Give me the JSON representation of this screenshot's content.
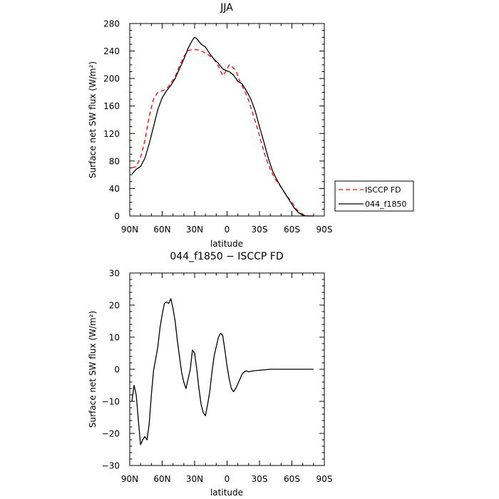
{
  "chart_data": [
    {
      "type": "line",
      "title": "JJA",
      "xlabel": "latitude",
      "ylabel": "Surface net SW flux (W/m²)",
      "xlim": [
        90,
        -90
      ],
      "ylim": [
        0,
        280
      ],
      "xticks": [
        90,
        60,
        30,
        0,
        -30,
        -60,
        -90
      ],
      "xtick_labels": [
        "90N",
        "60N",
        "30N",
        "0",
        "30S",
        "60S",
        "90S"
      ],
      "yticks": [
        0,
        40,
        80,
        120,
        160,
        200,
        240,
        280
      ],
      "ytick_labels": [
        "0",
        "40",
        "80",
        "120",
        "160",
        "200",
        "240",
        "280"
      ],
      "legend_position": "right",
      "series": [
        {
          "name": "ISCCP FD",
          "color": "#ff0000",
          "dash": "dashed",
          "points": [
            [
              88,
              70
            ],
            [
              84,
              72
            ],
            [
              80,
              85
            ],
            [
              76,
              110
            ],
            [
              72,
              145
            ],
            [
              68,
              170
            ],
            [
              64,
              180
            ],
            [
              60,
              182
            ],
            [
              56,
              185
            ],
            [
              52,
              193
            ],
            [
              48,
              203
            ],
            [
              44,
              218
            ],
            [
              40,
              232
            ],
            [
              36,
              241
            ],
            [
              32,
              242
            ],
            [
              28,
              242
            ],
            [
              24,
              240
            ],
            [
              20,
              237
            ],
            [
              16,
              233
            ],
            [
              12,
              228
            ],
            [
              8,
              218
            ],
            [
              4,
              204
            ],
            [
              2,
              208
            ],
            [
              0,
              214
            ],
            [
              -2,
              220
            ],
            [
              -4,
              218
            ],
            [
              -8,
              212
            ],
            [
              -12,
              195
            ],
            [
              -16,
              183
            ],
            [
              -20,
              168
            ],
            [
              -24,
              148
            ],
            [
              -28,
              128
            ],
            [
              -32,
              105
            ],
            [
              -36,
              84
            ],
            [
              -40,
              68
            ],
            [
              -44,
              55
            ],
            [
              -48,
              46
            ],
            [
              -52,
              37
            ],
            [
              -56,
              28
            ],
            [
              -60,
              20
            ],
            [
              -64,
              10
            ],
            [
              -68,
              4
            ],
            [
              -72,
              1
            ],
            [
              -76,
              0
            ],
            [
              -80,
              0
            ]
          ]
        },
        {
          "name": "044_f1850",
          "color": "#000000",
          "dash": "solid",
          "points": [
            [
              88,
              61
            ],
            [
              84,
              68
            ],
            [
              80,
              72
            ],
            [
              76,
              84
            ],
            [
              72,
              105
            ],
            [
              68,
              130
            ],
            [
              64,
              155
            ],
            [
              60,
              172
            ],
            [
              56,
              182
            ],
            [
              52,
              190
            ],
            [
              48,
              200
            ],
            [
              44,
              214
            ],
            [
              40,
              228
            ],
            [
              36,
              244
            ],
            [
              32,
              256
            ],
            [
              30,
              260
            ],
            [
              28,
              258
            ],
            [
              24,
              250
            ],
            [
              20,
              246
            ],
            [
              16,
              236
            ],
            [
              12,
              228
            ],
            [
              8,
              222
            ],
            [
              4,
              214
            ],
            [
              0,
              211
            ],
            [
              -2,
              210
            ],
            [
              -6,
              205
            ],
            [
              -10,
              196
            ],
            [
              -14,
              192
            ],
            [
              -18,
              182
            ],
            [
              -22,
              170
            ],
            [
              -26,
              153
            ],
            [
              -30,
              130
            ],
            [
              -34,
              108
            ],
            [
              -38,
              85
            ],
            [
              -42,
              66
            ],
            [
              -46,
              53
            ],
            [
              -50,
              42
            ],
            [
              -54,
              32
            ],
            [
              -58,
              22
            ],
            [
              -62,
              12
            ],
            [
              -66,
              5
            ],
            [
              -70,
              1
            ],
            [
              -74,
              0
            ],
            [
              -80,
              0
            ]
          ]
        }
      ]
    },
    {
      "type": "line",
      "title": "044_f1850 − ISCCP FD",
      "xlabel": "latitude",
      "ylabel": "Surface net SW flux (W/m²)",
      "xlim": [
        90,
        -90
      ],
      "ylim": [
        -30,
        30
      ],
      "xticks": [
        90,
        60,
        30,
        0,
        -30,
        -60,
        -90
      ],
      "xtick_labels": [
        "90N",
        "60N",
        "30N",
        "0",
        "30S",
        "60S",
        "90S"
      ],
      "yticks": [
        -30,
        -20,
        -10,
        0,
        10,
        20,
        30
      ],
      "ytick_labels": [
        "−30",
        "−20",
        "−10",
        "0",
        "10",
        "20",
        "30"
      ],
      "series": [
        {
          "color": "#000000",
          "dash": "solid",
          "points": [
            [
              88,
              -10
            ],
            [
              86,
              -5
            ],
            [
              84,
              -8
            ],
            [
              82,
              -16
            ],
            [
              80,
              -23.5
            ],
            [
              78,
              -22
            ],
            [
              76,
              -21
            ],
            [
              74,
              -22
            ],
            [
              72,
              -17
            ],
            [
              70,
              -8
            ],
            [
              68,
              -0.5
            ],
            [
              64,
              7
            ],
            [
              62,
              13
            ],
            [
              60,
              17
            ],
            [
              58,
              20.5
            ],
            [
              56,
              21
            ],
            [
              54,
              20.5
            ],
            [
              52,
              22
            ],
            [
              50,
              19
            ],
            [
              48,
              15
            ],
            [
              46,
              9
            ],
            [
              44,
              4
            ],
            [
              42,
              -1
            ],
            [
              40,
              -4
            ],
            [
              38,
              -6
            ],
            [
              36,
              -3
            ],
            [
              34,
              0
            ],
            [
              32,
              6
            ],
            [
              30,
              5
            ],
            [
              28,
              0
            ],
            [
              26,
              -6
            ],
            [
              24,
              -11
            ],
            [
              22,
              -13.5
            ],
            [
              20,
              -14.5
            ],
            [
              18,
              -11
            ],
            [
              16,
              -7
            ],
            [
              14,
              -1
            ],
            [
              12,
              4
            ],
            [
              10,
              7
            ],
            [
              8,
              10
            ],
            [
              6,
              11.2
            ],
            [
              4,
              10.5
            ],
            [
              2,
              6
            ],
            [
              0,
              1
            ],
            [
              -2,
              -3
            ],
            [
              -4,
              -6
            ],
            [
              -6,
              -7
            ],
            [
              -8,
              -6
            ],
            [
              -10,
              -4.5
            ],
            [
              -12,
              -3
            ],
            [
              -14,
              -1.5
            ],
            [
              -16,
              -0.8
            ],
            [
              -18,
              -0.5
            ],
            [
              -20,
              -0.8
            ],
            [
              -24,
              -0.5
            ],
            [
              -30,
              -0.3
            ],
            [
              -40,
              0
            ],
            [
              -60,
              0
            ],
            [
              -80,
              0
            ]
          ]
        }
      ]
    }
  ]
}
